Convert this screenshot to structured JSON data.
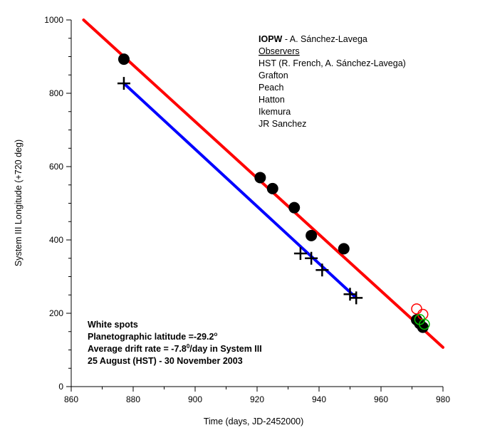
{
  "chart_data": {
    "type": "scatter",
    "xlabel": "Time (days, JD-2452000)",
    "ylabel": "System III Longitude (+720 deg)",
    "xlim": [
      860,
      980
    ],
    "ylim": [
      0,
      1000
    ],
    "x_ticks": [
      "860",
      "880",
      "900",
      "920",
      "940",
      "960",
      "980"
    ],
    "y_ticks": [
      "0",
      "200",
      "400",
      "600",
      "800",
      "1000"
    ],
    "grid": false,
    "legend": {
      "org_bold": "IOPW",
      "org_rest": " - A. Sánchez-Lavega",
      "observers_heading": "Observers",
      "observers": [
        "HST (R. French, A. Sánchez-Lavega)",
        "Grafton",
        "Peach",
        "Hatton",
        "Ikemura",
        "JR Sanchez"
      ]
    },
    "notes": [
      "White spots",
      "Planetographic latitude =-29.2",
      "Average drift rate = -7.8",
      "25 August (HST) - 30 November 2003"
    ],
    "note_degree_symbol": "o",
    "note_superscript_zero": "0",
    "note_drift_suffix": "/day in System III",
    "series": [
      {
        "marker": "filled-circle",
        "color": "#000000",
        "x": [
          877,
          921,
          925,
          932,
          937.5,
          948,
          971.5,
          972.5,
          973.5
        ],
        "y": [
          893,
          570,
          540,
          488,
          412,
          376,
          182,
          172,
          162
        ]
      },
      {
        "marker": "plus",
        "color": "#000000",
        "x": [
          877,
          934,
          937.5,
          941,
          950,
          952
        ],
        "y": [
          827,
          363,
          350,
          318,
          252,
          242
        ]
      },
      {
        "marker": "open-circle",
        "color": "#ff0000",
        "x": [
          971.5,
          973.5
        ],
        "y": [
          212,
          197
        ]
      },
      {
        "marker": "open-circle",
        "color": "#00c000",
        "x": [
          972.5,
          974
        ],
        "y": [
          183,
          170
        ]
      }
    ],
    "fits": [
      {
        "color": "#ff0000",
        "x": [
          864,
          980
        ],
        "y": [
          1000,
          107
        ]
      },
      {
        "color": "#0000ff",
        "x": [
          877,
          952
        ],
        "y": [
          827,
          242
        ]
      }
    ]
  }
}
